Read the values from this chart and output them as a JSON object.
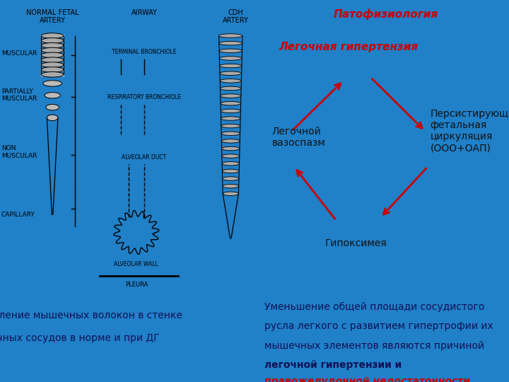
{
  "bg_color": "#2080c8",
  "left_bg": "#e8e8e8",
  "title1": "Патофизиология",
  "title2": "Легочная гипертензия",
  "node_left": "Легочной\nвазоспазм",
  "node_right": "Персистирующая\nфетальная\nциркуляция\n(ООО+ОАП)",
  "node_bottom": "Гипоксимея",
  "caption_left_line1": "Распределение мышечных волокон в стенке",
  "caption_left_line2": "легочных сосудов в норме и при ДГ",
  "caption_right_line1": "Уменьшение общей площади сосудистого",
  "caption_right_line2": "русла легкого с развитием гипертрофии их",
  "caption_right_line3": "мышечных элементов являются причиной",
  "caption_right_line4": "легочной гипертензии и",
  "caption_right_line5": "правожелудочной недостаточности.",
  "arrow_color": "#cc0000",
  "text_color_dark": "#111155",
  "text_color_red": "#cc0000",
  "text_color_black": "#111111",
  "text_color_diagram": "#000000"
}
